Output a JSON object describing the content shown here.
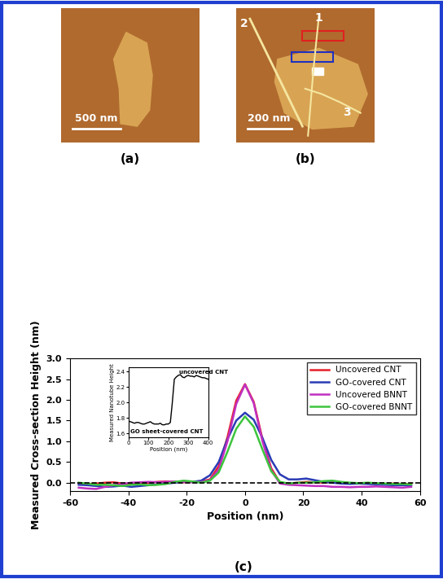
{
  "chart_data": [
    {
      "type": "line",
      "x_label": "Position (nm)",
      "y_label": "Measured Cross-section Height (nm)",
      "panel_label": "(c)",
      "xlim": [
        -60,
        60
      ],
      "xticks": [
        -60,
        -40,
        -20,
        0,
        20,
        40,
        60
      ],
      "ylim": [
        -0.2,
        3.0
      ],
      "yticks": [
        0.0,
        0.5,
        1.0,
        1.5,
        2.0,
        2.5,
        3.0
      ],
      "baseline": 0,
      "legend": "upper right",
      "x": [
        -57,
        -54,
        -51,
        -48,
        -45,
        -42,
        -39,
        -36,
        -33,
        -30,
        -27,
        -24,
        -21,
        -18,
        -15,
        -12,
        -9,
        -6,
        -3,
        0,
        3,
        6,
        9,
        12,
        15,
        18,
        21,
        24,
        27,
        30,
        33,
        36,
        39,
        42,
        45,
        48,
        51,
        54,
        57
      ],
      "series": [
        {
          "name": "Uncovered CNT",
          "color": "#e8202a",
          "values": [
            -0.02,
            -0.03,
            -0.02,
            0.0,
            0.01,
            -0.02,
            -0.03,
            -0.02,
            0.0,
            0.02,
            0.03,
            0.02,
            0.01,
            0.02,
            0.03,
            0.08,
            0.4,
            1.1,
            1.98,
            2.38,
            1.95,
            1.05,
            0.35,
            0.0,
            -0.02,
            0.0,
            0.02,
            0.01,
            0.0,
            0.02,
            0.01,
            -0.01,
            -0.02,
            -0.02,
            -0.03,
            -0.03,
            -0.02,
            -0.03,
            -0.03
          ]
        },
        {
          "name": "GO-covered CNT",
          "color": "#2a3bb5",
          "values": [
            -0.05,
            -0.06,
            -0.08,
            -0.1,
            -0.09,
            -0.07,
            -0.1,
            -0.08,
            -0.06,
            -0.04,
            -0.02,
            0.0,
            0.02,
            0.02,
            0.05,
            0.18,
            0.5,
            1.05,
            1.5,
            1.69,
            1.52,
            1.08,
            0.55,
            0.2,
            0.08,
            0.08,
            0.1,
            0.06,
            0.02,
            0.0,
            -0.02,
            -0.03,
            -0.02,
            -0.03,
            -0.04,
            -0.05,
            -0.06,
            -0.06,
            -0.07
          ]
        },
        {
          "name": "Uncovered BNNT",
          "color": "#c030c0",
          "values": [
            -0.12,
            -0.14,
            -0.15,
            -0.1,
            -0.06,
            -0.03,
            0.0,
            0.01,
            0.02,
            0.01,
            0.02,
            0.03,
            0.02,
            0.01,
            0.02,
            0.06,
            0.32,
            1.0,
            1.9,
            2.37,
            1.92,
            1.0,
            0.3,
            -0.02,
            -0.05,
            -0.06,
            -0.07,
            -0.08,
            -0.08,
            -0.1,
            -0.1,
            -0.11,
            -0.1,
            -0.1,
            -0.09,
            -0.1,
            -0.11,
            -0.12,
            -0.1
          ]
        },
        {
          "name": "GO-covered BNNT",
          "color": "#3cc43c",
          "values": [
            0.0,
            -0.02,
            -0.05,
            -0.05,
            -0.06,
            -0.08,
            -0.05,
            -0.04,
            -0.06,
            -0.05,
            -0.03,
            0.02,
            0.05,
            0.03,
            0.0,
            0.05,
            0.25,
            0.75,
            1.3,
            1.6,
            1.35,
            0.8,
            0.28,
            0.02,
            -0.02,
            0.0,
            0.0,
            0.01,
            0.04,
            0.05,
            0.02,
            0.0,
            -0.01,
            0.0,
            -0.01,
            -0.02,
            -0.03,
            -0.03,
            -0.04
          ]
        }
      ]
    },
    {
      "type": "line",
      "x_label": "Position (nm)",
      "y_label": "Measured Nanotube Height",
      "xlim": [
        0,
        400
      ],
      "xticks": [
        0,
        100,
        200,
        300,
        400
      ],
      "ylim": [
        1.55,
        2.45
      ],
      "yticks": [
        1.6,
        1.8,
        2.0,
        2.2,
        2.4
      ],
      "annotations": [
        {
          "text": "uncovered CNT",
          "x": 255,
          "y": 2.37
        },
        {
          "text": "GO sheet-covered CNT",
          "x": 10,
          "y": 1.6
        }
      ],
      "x": [
        0,
        10,
        20,
        30,
        40,
        50,
        60,
        70,
        80,
        90,
        100,
        110,
        120,
        130,
        140,
        150,
        160,
        170,
        180,
        190,
        200,
        210,
        220,
        230,
        240,
        250,
        260,
        270,
        280,
        290,
        300,
        310,
        320,
        330,
        340,
        350,
        360,
        370,
        380,
        390,
        400
      ],
      "series": [
        {
          "name": null,
          "color": "#000000",
          "values": [
            1.76,
            1.75,
            1.74,
            1.73,
            1.74,
            1.74,
            1.73,
            1.72,
            1.72,
            1.73,
            1.74,
            1.75,
            1.73,
            1.72,
            1.72,
            1.72,
            1.73,
            1.71,
            1.71,
            1.72,
            1.72,
            1.74,
            2.0,
            2.3,
            2.33,
            2.35,
            2.36,
            2.33,
            2.32,
            2.34,
            2.35,
            2.34,
            2.34,
            2.33,
            2.35,
            2.34,
            2.33,
            2.32,
            2.32,
            2.31,
            2.3
          ]
        }
      ]
    }
  ],
  "images": [
    {
      "panel_label": "(a)",
      "scale_bar": "500 nm"
    },
    {
      "panel_label": "(b)",
      "scale_bar": "200 nm",
      "markers": [
        "1",
        "2",
        "3"
      ]
    }
  ]
}
